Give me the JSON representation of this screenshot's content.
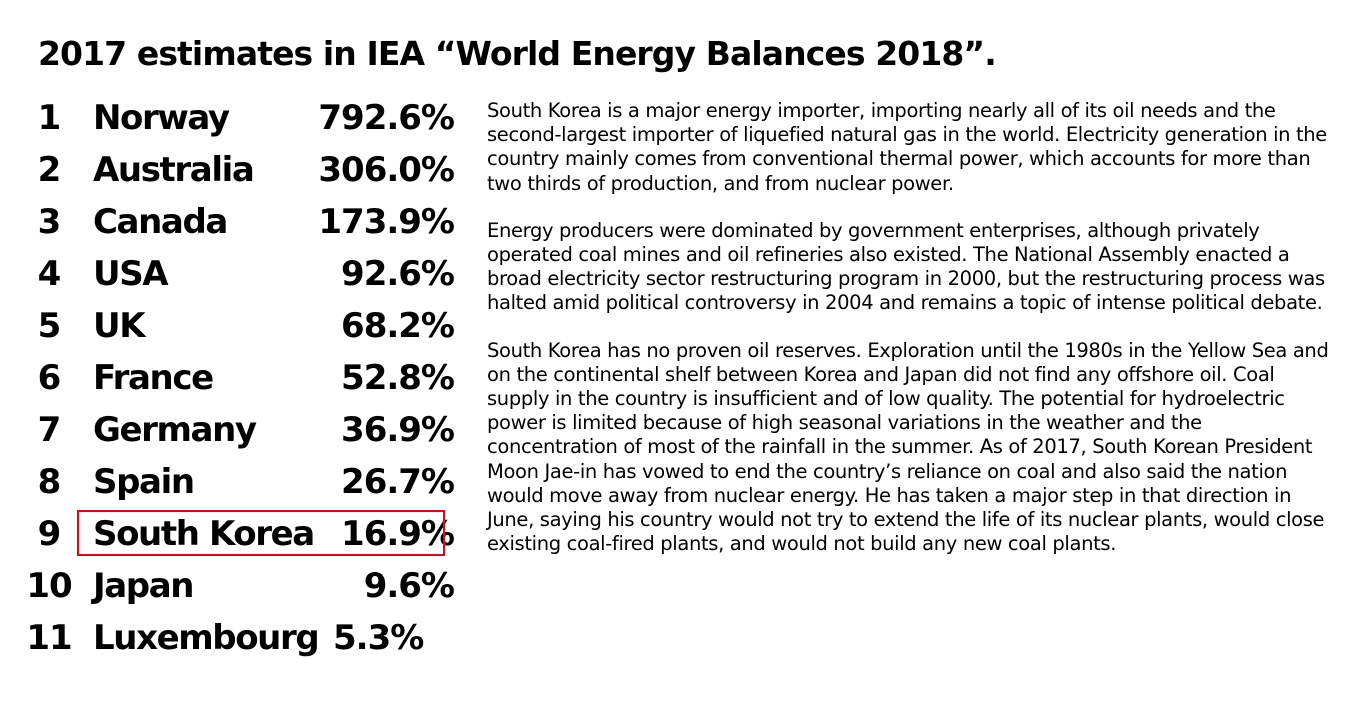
{
  "title": "2017 estimates in IEA “World Energy Balances 2018”.",
  "rankings": [
    {
      "rank": "1",
      "country": "Norway",
      "value": "792.6%"
    },
    {
      "rank": "2",
      "country": "Australia",
      "value": "306.0%"
    },
    {
      "rank": "3",
      "country": "Canada",
      "value": "173.9%"
    },
    {
      "rank": "4",
      "country": "USA",
      "value": "92.6%"
    },
    {
      "rank": "5",
      "country": "UK",
      "value": "68.2%"
    },
    {
      "rank": "6",
      "country": "France",
      "value": "52.8%"
    },
    {
      "rank": "7",
      "country": "Germany",
      "value": "36.9%"
    },
    {
      "rank": "8",
      "country": "Spain",
      "value": "26.7%"
    },
    {
      "rank": "9",
      "country": "South Korea",
      "value": "16.9%"
    },
    {
      "rank": "10",
      "country": "Japan",
      "value": "9.6%"
    },
    {
      "rank": "11",
      "country": "Luxembourg",
      "value": "5.3%"
    }
  ],
  "highlight": {
    "color": "#e30613",
    "country": "South Korea"
  },
  "paragraphs": [
    "South Korea is a major energy importer, importing nearly all of its oil needs and the second-largest importer of liquefied natural gas in the world. Electricity generation in the country mainly comes from conventional thermal power, which accounts for more than two thirds of production, and from nuclear power.",
    "Energy producers were dominated by government enterprises, although privately operated coal mines and oil refineries also existed. The National Assembly enacted a broad electricity sector restructuring program in 2000, but the restructuring process was halted amid political controversy in 2004 and remains a topic of intense political debate.",
    "South Korea has no proven oil reserves. Exploration until the 1980s in the Yellow Sea and on the continental shelf between Korea and Japan did not find any offshore oil. Coal supply in the country is insufficient and of low quality. The potential for hydroelectric power is limited because of high seasonal variations in the weather and the concentration of most of the rainfall in the summer. As of 2017, South Korean President Moon Jae-in has vowed to end the country’s reliance on coal and also said the nation would move away from nuclear energy. He has taken a major step in that direction in June, saying his country would not try to extend the life of its nuclear plants, would close existing coal-fired plants, and would not build any new coal plants."
  ]
}
